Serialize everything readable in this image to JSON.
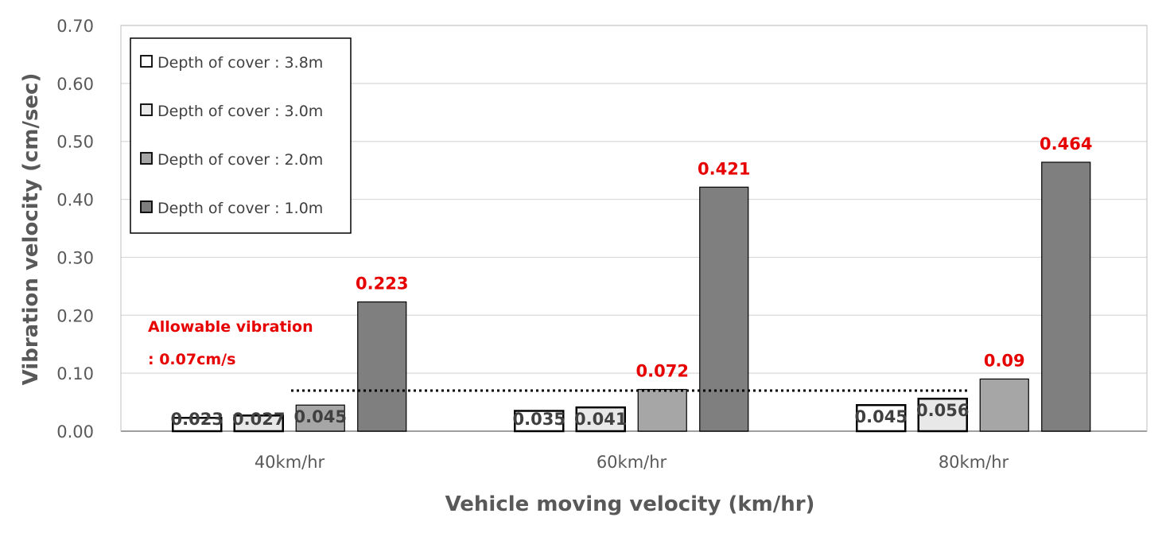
{
  "chart_data": {
    "type": "bar",
    "xlabel": "Vehicle moving velocity (km/hr)",
    "ylabel": "Vibration velocity (cm/sec)",
    "ylim": [
      0,
      0.7
    ],
    "yticks": [
      "0.00",
      "0.10",
      "0.20",
      "0.30",
      "0.40",
      "0.50",
      "0.60",
      "0.70"
    ],
    "grid": true,
    "legend_position": "top-left",
    "categories": [
      "40km/hr",
      "60km/hr",
      "80km/hr"
    ],
    "series": [
      {
        "name": "Depth of cover : 3.8m",
        "values": [
          0.023,
          0.035,
          0.045
        ],
        "labels": [
          "0.023",
          "0.035",
          "0.045"
        ],
        "color": "#ffffff"
      },
      {
        "name": "Depth of cover : 3.0m",
        "values": [
          0.027,
          0.041,
          0.056
        ],
        "labels": [
          "0.027",
          "0.041",
          "0.056"
        ],
        "color": "#e8e8e8"
      },
      {
        "name": "Depth of cover : 2.0m",
        "values": [
          0.045,
          0.072,
          0.09
        ],
        "labels": [
          "0.045",
          "0.072",
          "0.09"
        ],
        "color": "#a6a6a6"
      },
      {
        "name": "Depth of cover : 1.0m",
        "values": [
          0.223,
          0.421,
          0.464
        ],
        "labels": [
          "0.223",
          "0.421",
          "0.464"
        ],
        "color": "#7f7f7f"
      }
    ],
    "red_labels": [
      [
        false,
        false,
        false
      ],
      [
        false,
        false,
        false
      ],
      [
        false,
        true,
        true
      ],
      [
        true,
        true,
        true
      ]
    ],
    "threshold": {
      "value": 0.07,
      "line1": "Allowable vibration",
      "line2": ": 0.07cm/s",
      "color": "#e60000"
    }
  }
}
